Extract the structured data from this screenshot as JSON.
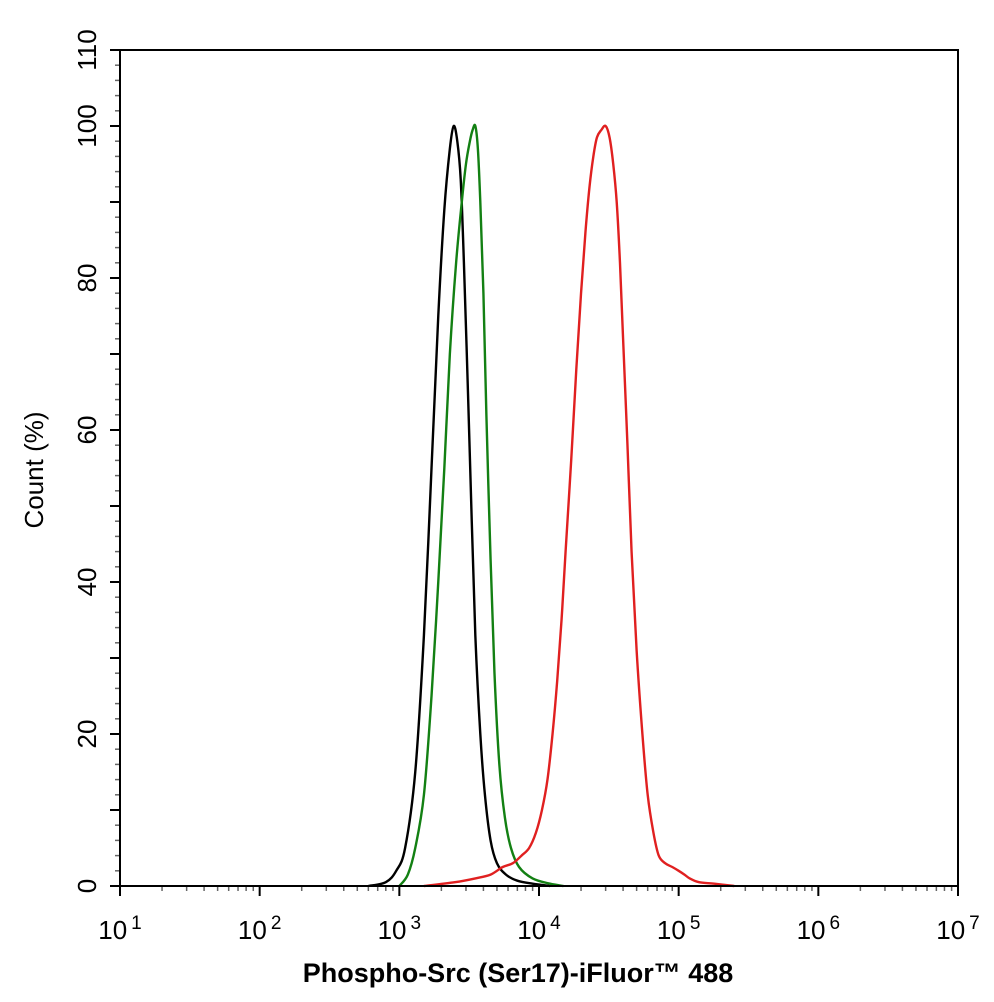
{
  "chart_data": {
    "type": "line",
    "xlabel": "Phospho-Src (Ser17)-iFluor™ 488",
    "ylabel": "Count  (%)",
    "x_scale": "log",
    "xlim": [
      10,
      10000000
    ],
    "ylim": [
      0,
      110
    ],
    "x_ticks": [
      {
        "base": "10",
        "exp": "1"
      },
      {
        "base": "10",
        "exp": "2"
      },
      {
        "base": "10",
        "exp": "3"
      },
      {
        "base": "10",
        "exp": "4"
      },
      {
        "base": "10",
        "exp": "5"
      },
      {
        "base": "10",
        "exp": "6"
      },
      {
        "base": "10",
        "exp": "7"
      }
    ],
    "y_ticks": [
      "0",
      "20",
      "40",
      "60",
      "80",
      "100",
      "110"
    ],
    "grid": false,
    "legend": "none",
    "series": [
      {
        "color": "#000000",
        "points": [
          [
            600,
            0
          ],
          [
            800,
            0.5
          ],
          [
            950,
            2
          ],
          [
            1100,
            5
          ],
          [
            1300,
            15
          ],
          [
            1500,
            33
          ],
          [
            1700,
            55
          ],
          [
            1900,
            75
          ],
          [
            2100,
            89
          ],
          [
            2300,
            97
          ],
          [
            2450,
            100
          ],
          [
            2600,
            98
          ],
          [
            2750,
            93
          ],
          [
            2900,
            82
          ],
          [
            3100,
            65
          ],
          [
            3300,
            48
          ],
          [
            3500,
            33
          ],
          [
            3800,
            20
          ],
          [
            4100,
            12
          ],
          [
            4500,
            6
          ],
          [
            5000,
            3
          ],
          [
            5800,
            1.5
          ],
          [
            7000,
            0.7
          ],
          [
            9000,
            0.3
          ],
          [
            12000,
            0
          ]
        ]
      },
      {
        "color": "#138013",
        "points": [
          [
            1000,
            0
          ],
          [
            1150,
            1.5
          ],
          [
            1300,
            5
          ],
          [
            1500,
            12
          ],
          [
            1700,
            25
          ],
          [
            1900,
            40
          ],
          [
            2100,
            55
          ],
          [
            2300,
            70
          ],
          [
            2550,
            82
          ],
          [
            2800,
            90
          ],
          [
            3000,
            95
          ],
          [
            3200,
            98
          ],
          [
            3350,
            99.5
          ],
          [
            3500,
            100
          ],
          [
            3650,
            97
          ],
          [
            3800,
            90
          ],
          [
            4000,
            78
          ],
          [
            4200,
            62
          ],
          [
            4500,
            43
          ],
          [
            4800,
            28
          ],
          [
            5200,
            16
          ],
          [
            5700,
            9
          ],
          [
            6300,
            5
          ],
          [
            7200,
            2.5
          ],
          [
            9000,
            1
          ],
          [
            12000,
            0.3
          ],
          [
            15000,
            0
          ]
        ]
      },
      {
        "color": "#e02020",
        "points": [
          [
            1500,
            0
          ],
          [
            2500,
            0.5
          ],
          [
            3500,
            1
          ],
          [
            4500,
            1.5
          ],
          [
            5500,
            2.5
          ],
          [
            6500,
            3
          ],
          [
            7500,
            4
          ],
          [
            8500,
            5
          ],
          [
            9500,
            7
          ],
          [
            10500,
            10
          ],
          [
            11500,
            14
          ],
          [
            12500,
            20
          ],
          [
            13500,
            27
          ],
          [
            14500,
            35
          ],
          [
            15500,
            44
          ],
          [
            17000,
            56
          ],
          [
            18500,
            68
          ],
          [
            20000,
            78
          ],
          [
            21500,
            86
          ],
          [
            23000,
            92
          ],
          [
            24500,
            96
          ],
          [
            26000,
            98.5
          ],
          [
            28000,
            99.5
          ],
          [
            30000,
            100
          ],
          [
            32000,
            98.5
          ],
          [
            34000,
            95
          ],
          [
            36000,
            90
          ],
          [
            38000,
            82
          ],
          [
            40000,
            72
          ],
          [
            43000,
            58
          ],
          [
            46000,
            44
          ],
          [
            50000,
            31
          ],
          [
            55000,
            20
          ],
          [
            60000,
            12
          ],
          [
            66000,
            7
          ],
          [
            72000,
            4
          ],
          [
            80000,
            3
          ],
          [
            90000,
            2.5
          ],
          [
            100000,
            2
          ],
          [
            110000,
            1.5
          ],
          [
            120000,
            1
          ],
          [
            140000,
            0.5
          ],
          [
            180000,
            0.3
          ],
          [
            250000,
            0
          ]
        ]
      }
    ]
  }
}
